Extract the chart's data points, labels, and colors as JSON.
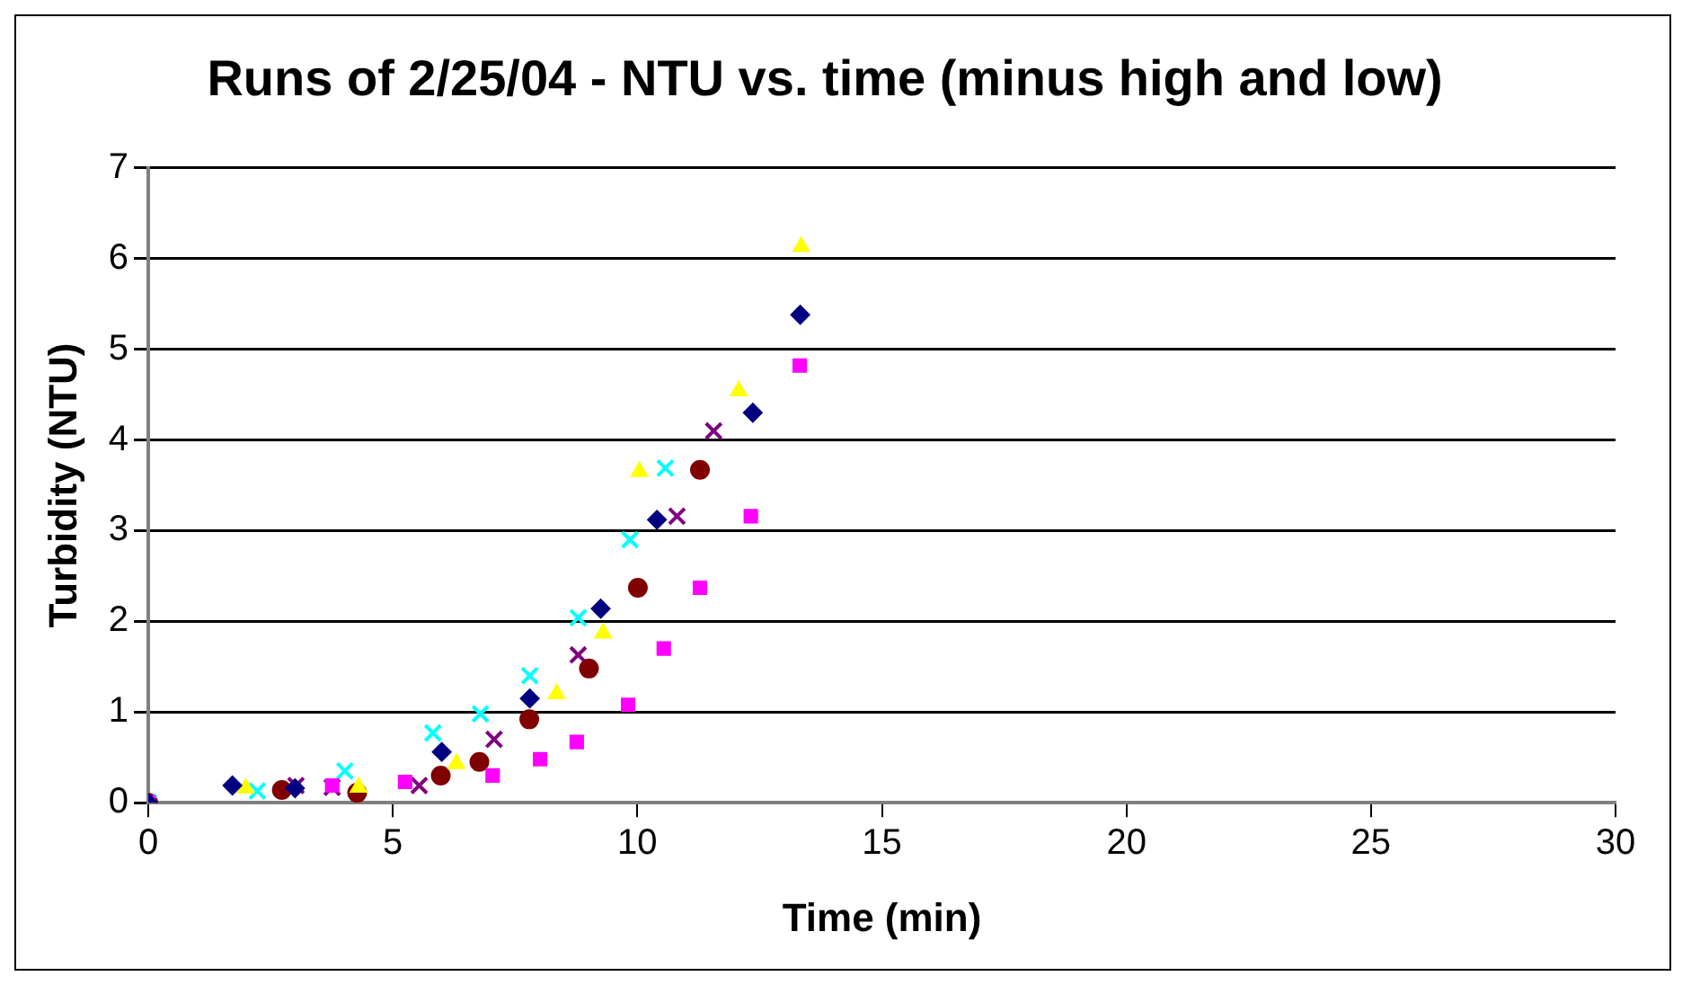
{
  "chart_data": {
    "type": "scatter",
    "title": "Runs of 2/25/04 - NTU vs. time (minus high and low)",
    "xlabel": "Time (min)",
    "ylabel": "Turbidity (NTU)",
    "xlim": [
      0,
      30
    ],
    "xticks": [
      0,
      5,
      10,
      15,
      20,
      25,
      30
    ],
    "ylim": [
      0,
      7
    ],
    "yticks": [
      0,
      1,
      2,
      3,
      4,
      5,
      6,
      7
    ],
    "grid": "y",
    "legend": false,
    "series": [
      {
        "color": "#000080",
        "marker": "diamond",
        "x": [
          0,
          1.72,
          3.0,
          6.0,
          7.8,
          9.25,
          10.4,
          12.36,
          13.33
        ],
        "values": [
          0,
          0.19,
          0.16,
          0.56,
          1.15,
          2.14,
          3.12,
          4.3,
          5.38
        ]
      },
      {
        "color": "#ff00ff",
        "marker": "square",
        "x": [
          0,
          3.76,
          5.25,
          7.04,
          8.01,
          8.76,
          9.81,
          10.54,
          11.28,
          12.32,
          13.32
        ],
        "values": [
          0,
          0.19,
          0.23,
          0.3,
          0.48,
          0.67,
          1.08,
          1.7,
          2.37,
          3.16,
          4.82
        ]
      },
      {
        "color": "#ffff00",
        "marker": "triangle",
        "x": [
          0,
          1.99,
          4.3,
          6.3,
          8.35,
          9.3,
          10.04,
          12.07,
          13.35
        ],
        "values": [
          0,
          0.16,
          0.17,
          0.43,
          1.2,
          1.87,
          3.65,
          4.54,
          6.13
        ]
      },
      {
        "color": "#00ffff",
        "marker": "cross",
        "x": [
          0,
          2.23,
          4.02,
          5.82,
          6.79,
          7.8,
          8.79,
          9.85,
          10.57
        ],
        "values": [
          0,
          0.13,
          0.35,
          0.77,
          0.98,
          1.4,
          2.04,
          2.9,
          3.69
        ]
      },
      {
        "color": "#800000",
        "marker": "circle",
        "x": [
          0,
          2.73,
          4.27,
          5.98,
          6.77,
          7.79,
          9.01,
          10.01,
          11.28
        ],
        "values": [
          0,
          0.14,
          0.11,
          0.3,
          0.45,
          0.92,
          1.48,
          2.37,
          3.67
        ]
      },
      {
        "color": "#800080",
        "marker": "cross",
        "x": [
          0,
          3.02,
          3.76,
          5.54,
          7.07,
          8.79,
          10.81,
          11.56
        ],
        "values": [
          0,
          0.19,
          0.17,
          0.19,
          0.7,
          1.63,
          3.16,
          4.1
        ]
      }
    ]
  }
}
